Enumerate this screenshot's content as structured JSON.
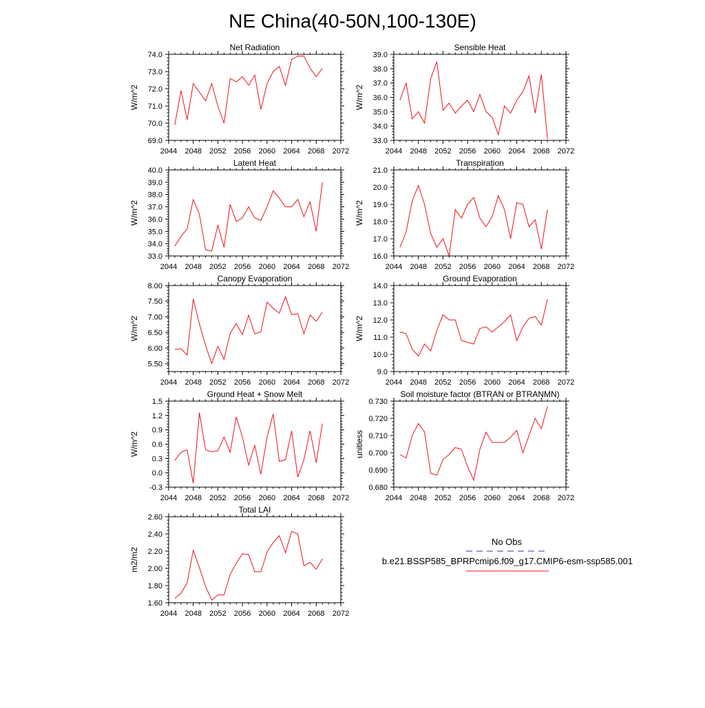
{
  "figure": {
    "title": "NE China(40-50N,100-130E)"
  },
  "legend": {
    "obs_label": "No Obs",
    "model_label": "b.e21.BSSP585_BPRPcmip6.f09_g17.CMIP6-esm-ssp585.001",
    "obs_color": "#3333aa",
    "model_color": "#e8141b"
  },
  "chart_data": [
    {
      "type": "line",
      "title": "Net Radiation",
      "ylabel": "W/m^2",
      "xlim": [
        2044,
        2072
      ],
      "ylim": [
        69.0,
        74.0
      ],
      "xticks": [
        "2044",
        "2048",
        "2052",
        "2056",
        "2060",
        "2064",
        "2068",
        "2072"
      ],
      "yticks": [
        "69.0",
        "70.0",
        "71.0",
        "72.0",
        "73.0",
        "74.0"
      ],
      "x": [
        2045,
        2046,
        2047,
        2048,
        2049,
        2050,
        2051,
        2052,
        2053,
        2054,
        2055,
        2056,
        2057,
        2058,
        2059,
        2060,
        2061,
        2062,
        2063,
        2064,
        2065,
        2066,
        2067,
        2068,
        2069
      ],
      "values": [
        69.9,
        71.9,
        70.2,
        72.3,
        71.8,
        71.3,
        72.3,
        71.0,
        70.0,
        72.6,
        72.4,
        72.7,
        72.2,
        72.8,
        70.8,
        72.3,
        73.0,
        73.3,
        72.2,
        73.7,
        73.9,
        73.9,
        73.2,
        72.7,
        73.2
      ]
    },
    {
      "type": "line",
      "title": "Sensible Heat",
      "ylabel": "W/m^2",
      "xlim": [
        2044,
        2072
      ],
      "ylim": [
        33.0,
        39.0
      ],
      "xticks": [
        "2044",
        "2048",
        "2052",
        "2056",
        "2060",
        "2064",
        "2068",
        "2072"
      ],
      "yticks": [
        "33.0",
        "34.0",
        "35.0",
        "36.0",
        "37.0",
        "38.0",
        "39.0"
      ],
      "x": [
        2045,
        2046,
        2047,
        2048,
        2049,
        2050,
        2051,
        2052,
        2053,
        2054,
        2055,
        2056,
        2057,
        2058,
        2059,
        2060,
        2061,
        2062,
        2063,
        2064,
        2065,
        2066,
        2067,
        2068,
        2069
      ],
      "values": [
        35.8,
        37.0,
        34.5,
        35.0,
        34.2,
        37.3,
        38.5,
        35.1,
        35.6,
        34.9,
        35.4,
        35.8,
        35.0,
        36.2,
        35.0,
        34.6,
        33.4,
        35.4,
        34.9,
        35.8,
        36.4,
        37.5,
        34.9,
        37.6,
        33.1
      ]
    },
    {
      "type": "line",
      "title": "Latent Heat",
      "ylabel": "W/m^2",
      "xlim": [
        2044,
        2072
      ],
      "ylim": [
        33.0,
        40.0
      ],
      "xticks": [
        "2044",
        "2048",
        "2052",
        "2056",
        "2060",
        "2064",
        "2068",
        "2072"
      ],
      "yticks": [
        "33.0",
        "34.0",
        "35.0",
        "36.0",
        "37.0",
        "38.0",
        "39.0",
        "40.0"
      ],
      "x": [
        2045,
        2046,
        2047,
        2048,
        2049,
        2050,
        2051,
        2052,
        2053,
        2054,
        2055,
        2056,
        2057,
        2058,
        2059,
        2060,
        2061,
        2062,
        2063,
        2064,
        2065,
        2066,
        2067,
        2068,
        2069
      ],
      "values": [
        33.8,
        34.6,
        35.2,
        37.6,
        36.4,
        33.5,
        33.4,
        35.5,
        33.7,
        37.2,
        35.8,
        36.1,
        37.0,
        36.1,
        35.9,
        37.0,
        38.3,
        37.7,
        37.0,
        37.0,
        37.6,
        36.2,
        37.4,
        35.0,
        39.0
      ]
    },
    {
      "type": "line",
      "title": "Transpiration",
      "ylabel": "W/m^2",
      "xlim": [
        2044,
        2072
      ],
      "ylim": [
        16.0,
        21.0
      ],
      "xticks": [
        "2044",
        "2048",
        "2052",
        "2056",
        "2060",
        "2064",
        "2068",
        "2072"
      ],
      "yticks": [
        "16.0",
        "17.0",
        "18.0",
        "19.0",
        "20.0",
        "21.0"
      ],
      "x": [
        2045,
        2046,
        2047,
        2048,
        2049,
        2050,
        2051,
        2052,
        2053,
        2054,
        2055,
        2056,
        2057,
        2058,
        2059,
        2060,
        2061,
        2062,
        2063,
        2064,
        2065,
        2066,
        2067,
        2068,
        2069
      ],
      "values": [
        16.5,
        17.4,
        19.2,
        20.1,
        19.0,
        17.3,
        16.5,
        17.0,
        16.0,
        18.7,
        18.2,
        19.0,
        19.4,
        18.2,
        17.7,
        18.3,
        19.5,
        18.7,
        17.0,
        19.1,
        19.0,
        17.7,
        18.1,
        16.4,
        18.7
      ]
    },
    {
      "type": "line",
      "title": "Canopy Evaporation",
      "ylabel": "W/m^2",
      "xlim": [
        2044,
        2072
      ],
      "ylim": [
        5.25,
        8.0
      ],
      "xticks": [
        "2044",
        "2048",
        "2052",
        "2056",
        "2060",
        "2064",
        "2068",
        "2072"
      ],
      "yticks": [
        "5.50",
        "6.00",
        "6.50",
        "7.00",
        "7.50",
        "8.00"
      ],
      "ytick_values": [
        5.5,
        6.0,
        6.5,
        7.0,
        7.5,
        8.0
      ],
      "x": [
        2045,
        2046,
        2047,
        2048,
        2049,
        2050,
        2051,
        2052,
        2053,
        2054,
        2055,
        2056,
        2057,
        2058,
        2059,
        2060,
        2061,
        2062,
        2063,
        2064,
        2065,
        2066,
        2067,
        2068,
        2069
      ],
      "values": [
        5.96,
        5.98,
        5.78,
        7.57,
        6.78,
        6.08,
        5.51,
        6.05,
        5.64,
        6.47,
        6.78,
        6.43,
        7.05,
        6.46,
        6.52,
        7.47,
        7.27,
        7.12,
        7.64,
        7.07,
        7.1,
        6.46,
        7.06,
        6.86,
        7.15
      ]
    },
    {
      "type": "line",
      "title": "Ground Evaporation",
      "ylabel": "W/m^2",
      "xlim": [
        2044,
        2072
      ],
      "ylim": [
        9.0,
        14.0
      ],
      "xticks": [
        "2044",
        "2048",
        "2052",
        "2056",
        "2060",
        "2064",
        "2068",
        "2072"
      ],
      "yticks": [
        "9.0",
        "10.0",
        "11.0",
        "12.0",
        "13.0",
        "14.0"
      ],
      "x": [
        2045,
        2046,
        2047,
        2048,
        2049,
        2050,
        2051,
        2052,
        2053,
        2054,
        2055,
        2056,
        2057,
        2058,
        2059,
        2060,
        2061,
        2062,
        2063,
        2064,
        2065,
        2066,
        2067,
        2068,
        2069
      ],
      "values": [
        11.3,
        11.2,
        10.3,
        9.9,
        10.6,
        10.2,
        11.4,
        12.3,
        12.0,
        12.0,
        10.8,
        10.7,
        10.6,
        11.5,
        11.6,
        11.3,
        11.6,
        11.9,
        12.3,
        10.8,
        11.6,
        12.1,
        12.2,
        11.7,
        13.2
      ]
    },
    {
      "type": "line",
      "title": "Ground Heat + Snow Melt",
      "ylabel": "W/m^2",
      "xlim": [
        2044,
        2072
      ],
      "ylim": [
        -0.3,
        1.5
      ],
      "xticks": [
        "2044",
        "2048",
        "2052",
        "2056",
        "2060",
        "2064",
        "2068",
        "2072"
      ],
      "yticks": [
        "-0.3",
        "0.0",
        "0.3",
        "0.6",
        "0.9",
        "1.2",
        "1.5"
      ],
      "ytick_values": [
        -0.3,
        0.0,
        0.3,
        0.6,
        0.9,
        1.2,
        1.5
      ],
      "x": [
        2045,
        2046,
        2047,
        2048,
        2049,
        2050,
        2051,
        2052,
        2053,
        2054,
        2055,
        2056,
        2057,
        2058,
        2059,
        2060,
        2061,
        2062,
        2063,
        2064,
        2065,
        2066,
        2067,
        2068,
        2069
      ],
      "values": [
        0.26,
        0.43,
        0.48,
        -0.22,
        1.26,
        0.48,
        0.44,
        0.46,
        0.75,
        0.43,
        1.17,
        0.75,
        0.16,
        0.58,
        -0.03,
        0.75,
        1.23,
        0.24,
        0.27,
        0.88,
        -0.09,
        0.27,
        0.88,
        0.21,
        1.03
      ]
    },
    {
      "type": "line",
      "title": "Soil moisture factor (BTRAN or BTRANMN)",
      "ylabel": "unitless",
      "xlim": [
        2044,
        2072
      ],
      "ylim": [
        0.68,
        0.73
      ],
      "xticks": [
        "2044",
        "2048",
        "2052",
        "2056",
        "2060",
        "2064",
        "2068",
        "2072"
      ],
      "yticks": [
        "0.680",
        "0.690",
        "0.700",
        "0.710",
        "0.720",
        "0.730"
      ],
      "x": [
        2045,
        2046,
        2047,
        2048,
        2049,
        2050,
        2051,
        2052,
        2053,
        2054,
        2055,
        2056,
        2057,
        2058,
        2059,
        2060,
        2061,
        2062,
        2063,
        2064,
        2065,
        2066,
        2067,
        2068,
        2069
      ],
      "values": [
        0.699,
        0.697,
        0.71,
        0.717,
        0.712,
        0.688,
        0.687,
        0.696,
        0.699,
        0.703,
        0.702,
        0.692,
        0.684,
        0.702,
        0.712,
        0.706,
        0.706,
        0.706,
        0.709,
        0.713,
        0.7,
        0.71,
        0.72,
        0.714,
        0.727
      ]
    },
    {
      "type": "line",
      "title": "Total LAI",
      "ylabel": "m2/m2",
      "xlim": [
        2044,
        2072
      ],
      "ylim": [
        1.6,
        2.6
      ],
      "xticks": [
        "2044",
        "2048",
        "2052",
        "2056",
        "2060",
        "2064",
        "2068",
        "2072"
      ],
      "yticks": [
        "1.60",
        "1.80",
        "2.00",
        "2.20",
        "2.40",
        "2.60"
      ],
      "ytick_values": [
        1.6,
        1.8,
        2.0,
        2.2,
        2.4,
        2.6
      ],
      "x": [
        2045,
        2046,
        2047,
        2048,
        2049,
        2050,
        2051,
        2052,
        2053,
        2054,
        2055,
        2056,
        2057,
        2058,
        2059,
        2060,
        2061,
        2062,
        2063,
        2064,
        2065,
        2066,
        2067,
        2068,
        2069
      ],
      "values": [
        1.65,
        1.71,
        1.83,
        2.21,
        2.01,
        1.79,
        1.63,
        1.69,
        1.69,
        1.93,
        2.06,
        2.17,
        2.16,
        1.96,
        1.96,
        2.19,
        2.3,
        2.38,
        2.18,
        2.43,
        2.4,
        2.03,
        2.07,
        1.99,
        2.11
      ]
    }
  ]
}
